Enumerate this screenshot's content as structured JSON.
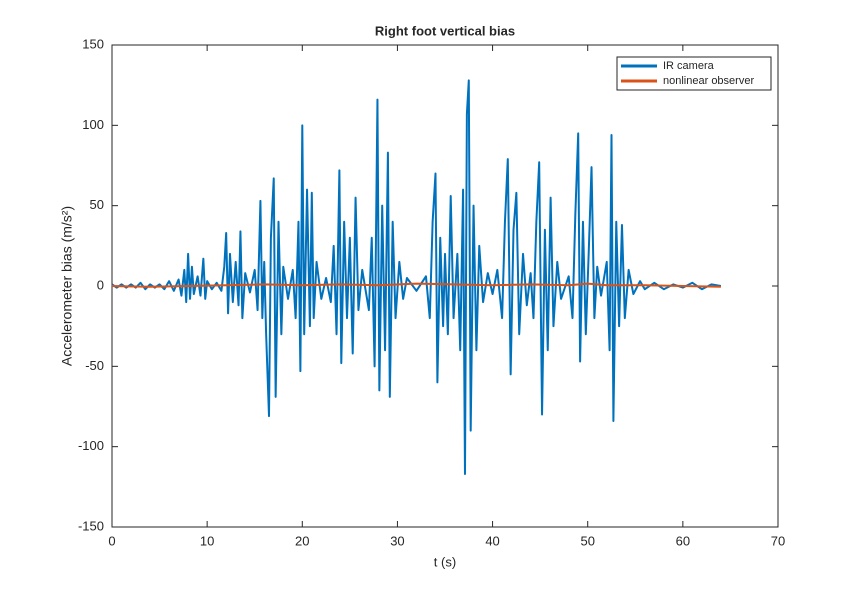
{
  "chart_data": {
    "type": "line",
    "title": "Right foot vertical bias",
    "xlabel": "t (s)",
    "ylabel": "Accelerometer bias (m/s²)",
    "xlim": [
      0,
      70
    ],
    "xticks": [
      0,
      10,
      20,
      30,
      40,
      50,
      60,
      70
    ],
    "ylim": [
      -150,
      150
    ],
    "yticks": [
      -150,
      -100,
      -50,
      0,
      50,
      100,
      150
    ],
    "legend": "upper right",
    "series": [
      {
        "name": "IR camera",
        "color": "#0072bd",
        "x": [
          0,
          0.5,
          1,
          1.5,
          2,
          2.5,
          3,
          3.5,
          4,
          4.5,
          5,
          5.5,
          6,
          6.5,
          7,
          7.3,
          7.6,
          7.8,
          8,
          8.2,
          8.4,
          8.6,
          9,
          9.3,
          9.6,
          9.8,
          10,
          10.5,
          11,
          11.5,
          11.8,
          12,
          12.2,
          12.4,
          12.7,
          13,
          13.3,
          13.5,
          13.7,
          14,
          14.5,
          15,
          15.3,
          15.6,
          15.8,
          16,
          16.2,
          16.5,
          16.7,
          17,
          17.2,
          17.5,
          17.8,
          18,
          18.5,
          19,
          19.3,
          19.6,
          19.8,
          20,
          20.2,
          20.5,
          20.8,
          21,
          21.2,
          21.5,
          22,
          22.5,
          23,
          23.3,
          23.6,
          23.9,
          24.1,
          24.4,
          24.7,
          25,
          25.3,
          25.6,
          25.9,
          26.3,
          27,
          27.3,
          27.6,
          27.9,
          28.1,
          28.4,
          28.7,
          29,
          29.2,
          29.5,
          29.8,
          30.2,
          30.6,
          31,
          32,
          33,
          33.4,
          33.7,
          34,
          34.2,
          34.5,
          34.8,
          35,
          35.3,
          35.6,
          35.9,
          36.3,
          36.6,
          36.9,
          37.1,
          37.3,
          37.5,
          37.7,
          38,
          38.3,
          38.6,
          39,
          39.5,
          40,
          40.5,
          41,
          41.3,
          41.6,
          41.9,
          42.2,
          42.5,
          42.8,
          43.2,
          43.6,
          44,
          44.3,
          44.6,
          44.9,
          45.2,
          45.5,
          45.8,
          46.1,
          46.4,
          46.8,
          47.2,
          48,
          48.4,
          48.7,
          49,
          49.2,
          49.5,
          49.8,
          50.1,
          50.4,
          50.7,
          51,
          51.4,
          52,
          52.3,
          52.5,
          52.7,
          53,
          53.3,
          53.6,
          53.9,
          54.3,
          54.8,
          55.5,
          56,
          57,
          58,
          59,
          60,
          61,
          62,
          63,
          64
        ],
        "values": [
          1,
          -1,
          1,
          -1,
          1,
          -1,
          2,
          -2,
          1,
          -1,
          1,
          -2,
          3,
          -3,
          4,
          -6,
          10,
          -10,
          20,
          -8,
          12,
          -5,
          6,
          -6,
          17,
          -8,
          3,
          -2,
          2,
          -3,
          12,
          33,
          -17,
          20,
          -10,
          15,
          -12,
          34,
          -20,
          8,
          -4,
          10,
          -15,
          53,
          -20,
          15,
          -30,
          -81,
          30,
          67,
          -69,
          40,
          -30,
          12,
          -8,
          10,
          -20,
          40,
          -53,
          100,
          -30,
          60,
          -25,
          58,
          -20,
          15,
          -8,
          5,
          -10,
          25,
          -30,
          72,
          -48,
          40,
          -20,
          30,
          -42,
          55,
          -15,
          10,
          -15,
          30,
          -50,
          116,
          -65,
          50,
          -40,
          83,
          -69,
          40,
          -20,
          15,
          -8,
          5,
          -3,
          6,
          -20,
          40,
          70,
          -60,
          30,
          -25,
          20,
          -30,
          56,
          -20,
          20,
          -40,
          60,
          -117,
          107,
          128,
          -90,
          50,
          -40,
          25,
          -10,
          8,
          -5,
          10,
          -20,
          40,
          79,
          -55,
          35,
          58,
          -30,
          20,
          -12,
          8,
          -20,
          40,
          77,
          -80,
          35,
          -40,
          55,
          -25,
          15,
          -8,
          6,
          -20,
          45,
          95,
          -47,
          40,
          -30,
          20,
          74,
          -20,
          12,
          -6,
          15,
          -40,
          94,
          -84,
          40,
          -25,
          38,
          -20,
          10,
          -5,
          3,
          -2,
          2,
          -2,
          1,
          -1,
          2,
          -2,
          1,
          0
        ]
      },
      {
        "name": "nonlinear observer",
        "color": "#d95319",
        "x": [
          0,
          4,
          8,
          12,
          16,
          20,
          24,
          28,
          32,
          36,
          40,
          44,
          48,
          50,
          52,
          56,
          60,
          64
        ],
        "values": [
          0,
          -0.5,
          0,
          0.5,
          1,
          0.5,
          1,
          0.5,
          1.5,
          1,
          0.5,
          1,
          0.5,
          1.5,
          0.5,
          0.5,
          0,
          -0.5
        ]
      }
    ]
  }
}
